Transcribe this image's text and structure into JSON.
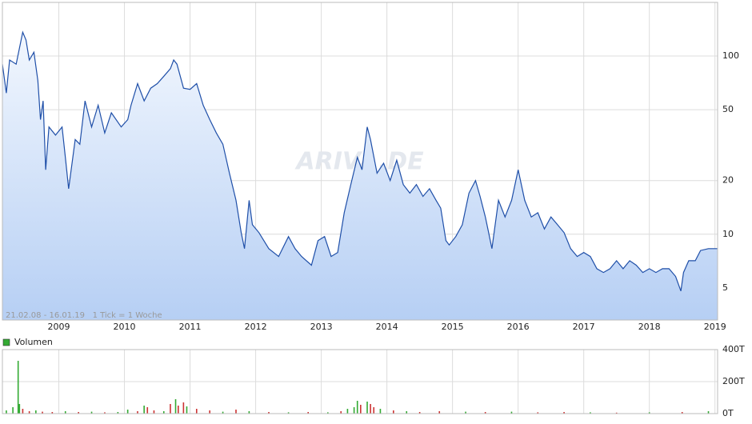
{
  "chart_data": [
    {
      "type": "line",
      "fill": true,
      "color": "#1f4fa8",
      "log_scale": true,
      "grid": true,
      "annotation": "21.02.08 - 16.01.19   1 Tick = 1 Woche",
      "watermark": "ARIVA.DE",
      "xlim": [
        2008.14,
        2019.04
      ],
      "xticks": [
        2009,
        2010,
        2011,
        2012,
        2013,
        2014,
        2015,
        2016,
        2017,
        2018,
        2019
      ],
      "ylim": [
        3.3,
        200
      ],
      "yticks": [
        5,
        10,
        20,
        50,
        100
      ],
      "x": [
        2008.14,
        2008.2,
        2008.25,
        2008.35,
        2008.45,
        2008.5,
        2008.55,
        2008.62,
        2008.68,
        2008.72,
        2008.76,
        2008.8,
        2008.85,
        2008.95,
        2009.05,
        2009.1,
        2009.15,
        2009.25,
        2009.32,
        2009.4,
        2009.5,
        2009.6,
        2009.7,
        2009.8,
        2009.95,
        2010.05,
        2010.1,
        2010.2,
        2010.3,
        2010.4,
        2010.5,
        2010.6,
        2010.7,
        2010.75,
        2010.8,
        2010.9,
        2011.0,
        2011.1,
        2011.2,
        2011.3,
        2011.4,
        2011.5,
        2011.6,
        2011.7,
        2011.78,
        2011.83,
        2011.9,
        2011.95,
        2012.05,
        2012.2,
        2012.35,
        2012.5,
        2012.6,
        2012.7,
        2012.85,
        2012.95,
        2013.05,
        2013.15,
        2013.25,
        2013.35,
        2013.45,
        2013.55,
        2013.62,
        2013.7,
        2013.75,
        2013.85,
        2013.95,
        2014.05,
        2014.15,
        2014.25,
        2014.35,
        2014.45,
        2014.55,
        2014.65,
        2014.75,
        2014.82,
        2014.9,
        2014.95,
        2015.05,
        2015.15,
        2015.25,
        2015.35,
        2015.42,
        2015.5,
        2015.55,
        2015.6,
        2015.7,
        2015.8,
        2015.9,
        2016.0,
        2016.1,
        2016.2,
        2016.3,
        2016.4,
        2016.5,
        2016.6,
        2016.7,
        2016.8,
        2016.9,
        2017.0,
        2017.1,
        2017.2,
        2017.3,
        2017.4,
        2017.5,
        2017.6,
        2017.7,
        2017.8,
        2017.9,
        2018.0,
        2018.1,
        2018.2,
        2018.3,
        2018.4,
        2018.48,
        2018.52,
        2018.6,
        2018.7,
        2018.78,
        2018.9,
        2019.04
      ],
      "values": [
        90,
        62,
        95,
        90,
        136,
        123,
        95,
        105,
        73,
        44,
        56,
        23,
        40,
        36,
        40,
        27,
        18,
        34,
        32,
        56,
        40,
        53,
        37,
        48,
        40,
        44,
        53,
        70,
        56,
        66,
        70,
        77,
        85,
        95,
        90,
        66,
        65,
        70,
        53,
        44,
        37,
        32,
        22,
        15.5,
        10.2,
        8.3,
        15.5,
        11.3,
        10.2,
        8.3,
        7.5,
        9.7,
        8.3,
        7.5,
        6.7,
        9.2,
        9.7,
        7.5,
        7.9,
        13.2,
        19,
        27,
        23,
        40,
        34,
        22,
        25,
        20,
        26,
        19,
        17,
        19,
        16.3,
        18,
        15.5,
        14,
        9.2,
        8.7,
        9.7,
        11.3,
        17,
        20,
        16.3,
        12.5,
        10.2,
        8.3,
        15.5,
        12.5,
        15.5,
        23,
        15.5,
        12.5,
        13.2,
        10.7,
        12.5,
        11.3,
        10.2,
        8.3,
        7.5,
        7.9,
        7.5,
        6.4,
        6.1,
        6.4,
        7.1,
        6.4,
        7.1,
        6.7,
        6.1,
        6.4,
        6.1,
        6.4,
        6.4,
        5.8,
        4.8,
        6.1,
        7.1,
        7.1,
        8.1,
        8.3,
        8.3
      ]
    },
    {
      "type": "bar",
      "grid": true,
      "xlim": [
        2008.14,
        2019.04
      ],
      "xticks": [
        2009,
        2010,
        2011,
        2012,
        2013,
        2014,
        2015,
        2016,
        2017,
        2018,
        2019
      ],
      "ylim": [
        0,
        400
      ],
      "yticks": [
        {
          "value": 0,
          "label": "0T"
        },
        {
          "value": 200,
          "label": "200T"
        },
        {
          "value": 400,
          "label": "400T"
        }
      ],
      "x": [
        2008.2,
        2008.3,
        2008.38,
        2008.4,
        2008.45,
        2008.55,
        2008.65,
        2008.75,
        2008.9,
        2009.1,
        2009.3,
        2009.5,
        2009.7,
        2009.9,
        2010.05,
        2010.2,
        2010.3,
        2010.35,
        2010.45,
        2010.6,
        2010.7,
        2010.78,
        2010.82,
        2010.9,
        2010.95,
        2011.1,
        2011.3,
        2011.5,
        2011.7,
        2011.9,
        2012.2,
        2012.5,
        2012.8,
        2013.1,
        2013.3,
        2013.4,
        2013.5,
        2013.55,
        2013.6,
        2013.7,
        2013.75,
        2013.8,
        2013.9,
        2014.1,
        2014.3,
        2014.5,
        2014.8,
        2015.2,
        2015.5,
        2015.9,
        2016.3,
        2016.7,
        2017.1,
        2017.5,
        2018.0,
        2018.5,
        2018.9
      ],
      "series": [
        {
          "name": "Volumen",
          "color": "#33aa33",
          "values": [
            20,
            40,
            330,
            60,
            30,
            15,
            20,
            12,
            10,
            15,
            10,
            12,
            8,
            10,
            25,
            15,
            50,
            40,
            20,
            15,
            60,
            90,
            50,
            70,
            45,
            30,
            20,
            12,
            25,
            15,
            10,
            8,
            10,
            8,
            15,
            30,
            40,
            80,
            55,
            75,
            60,
            40,
            30,
            20,
            15,
            10,
            15,
            12,
            10,
            12,
            8,
            10,
            8,
            6,
            8,
            10,
            15
          ],
          "bar_colors": [
            "#33aa33",
            "#33aa33",
            "#33aa33",
            "#33aa33",
            "#cc3333",
            "#cc3333",
            "#33aa33",
            "#cc3333",
            "#cc3333",
            "#33aa33",
            "#cc3333",
            "#33aa33",
            "#cc3333",
            "#33aa33",
            "#33aa33",
            "#cc3333",
            "#33aa33",
            "#cc3333",
            "#cc3333",
            "#33aa33",
            "#cc3333",
            "#33aa33",
            "#cc3333",
            "#cc3333",
            "#33aa33",
            "#cc3333",
            "#cc3333",
            "#33aa33",
            "#cc3333",
            "#33aa33",
            "#cc3333",
            "#33aa33",
            "#cc3333",
            "#33aa33",
            "#cc3333",
            "#33aa33",
            "#33aa33",
            "#33aa33",
            "#cc3333",
            "#33aa33",
            "#cc3333",
            "#cc3333",
            "#33aa33",
            "#cc3333",
            "#33aa33",
            "#cc3333",
            "#cc3333",
            "#33aa33",
            "#cc3333",
            "#33aa33",
            "#cc3333",
            "#cc3333",
            "#33aa33",
            "#cc3333",
            "#33aa33",
            "#cc3333",
            "#33aa33"
          ]
        }
      ]
    }
  ]
}
